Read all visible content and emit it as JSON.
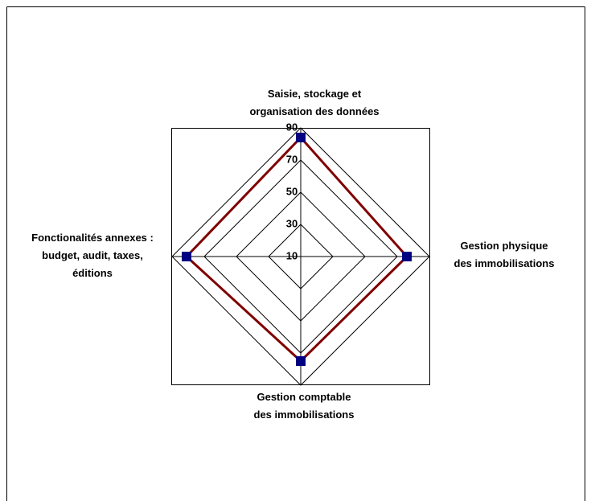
{
  "chart_data": {
    "type": "radar",
    "categories": [
      "Saisie, stockage et\norganisation des données",
      "Gestion physique\ndes immobilisations",
      "Gestion comptable\ndes immobilisations",
      "Fonctionalités annexes :\nbudget, audit, taxes,\néditions"
    ],
    "values": [
      84,
      76,
      75,
      81
    ],
    "color": "#800000",
    "marker_color": "#000080",
    "ylim": [
      10,
      90
    ],
    "yticks": [
      10,
      30,
      50,
      70,
      90
    ],
    "grid": true
  }
}
